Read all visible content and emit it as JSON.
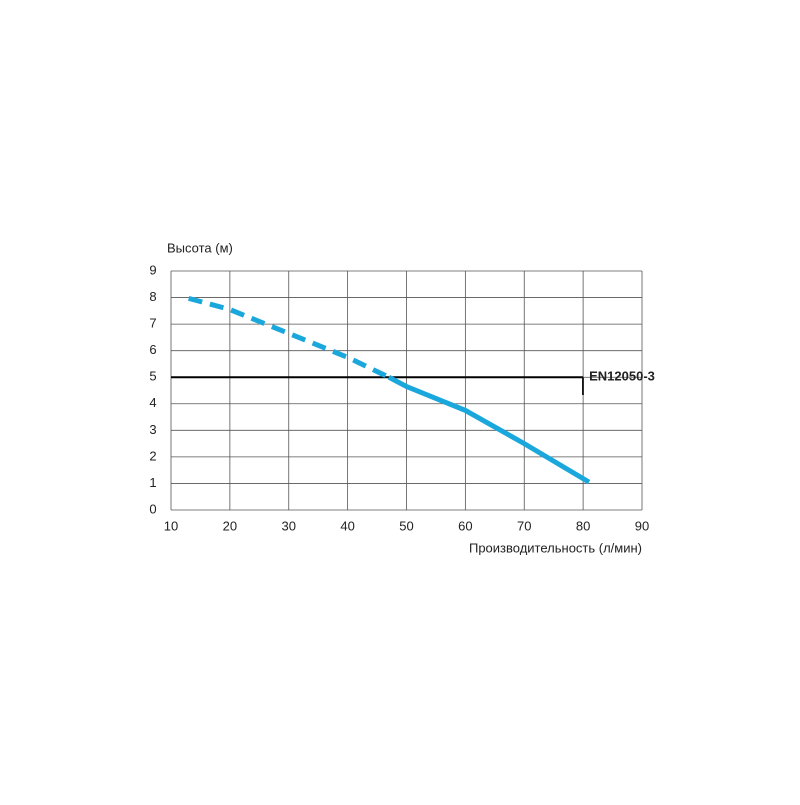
{
  "chart_data": {
    "type": "line",
    "xlabel": "Производительность (л/мин)",
    "ylabel": "Высота (м)",
    "xlim": [
      10,
      90
    ],
    "xticks": [
      10,
      20,
      30,
      40,
      50,
      60,
      70,
      80,
      90
    ],
    "ylim": [
      0,
      9
    ],
    "yticks": [
      0,
      1,
      2,
      3,
      4,
      5,
      6,
      7,
      8,
      9
    ],
    "grid": true,
    "series": [
      {
        "color": "#1aa7dc",
        "dashed": true,
        "x": [
          13,
          20,
          30,
          40,
          47
        ],
        "values": [
          7.97,
          7.55,
          6.65,
          5.75,
          5.0
        ]
      },
      {
        "color": "#1aa7dc",
        "dashed": false,
        "x": [
          47,
          50,
          60,
          70,
          81
        ],
        "values": [
          5.0,
          4.65,
          3.75,
          2.5,
          1.05
        ]
      }
    ],
    "reference_line": {
      "label": "EN12050-3",
      "value": 5,
      "x": [
        10,
        80
      ],
      "color": "#000000",
      "label_color": "#1aa7dc"
    }
  }
}
